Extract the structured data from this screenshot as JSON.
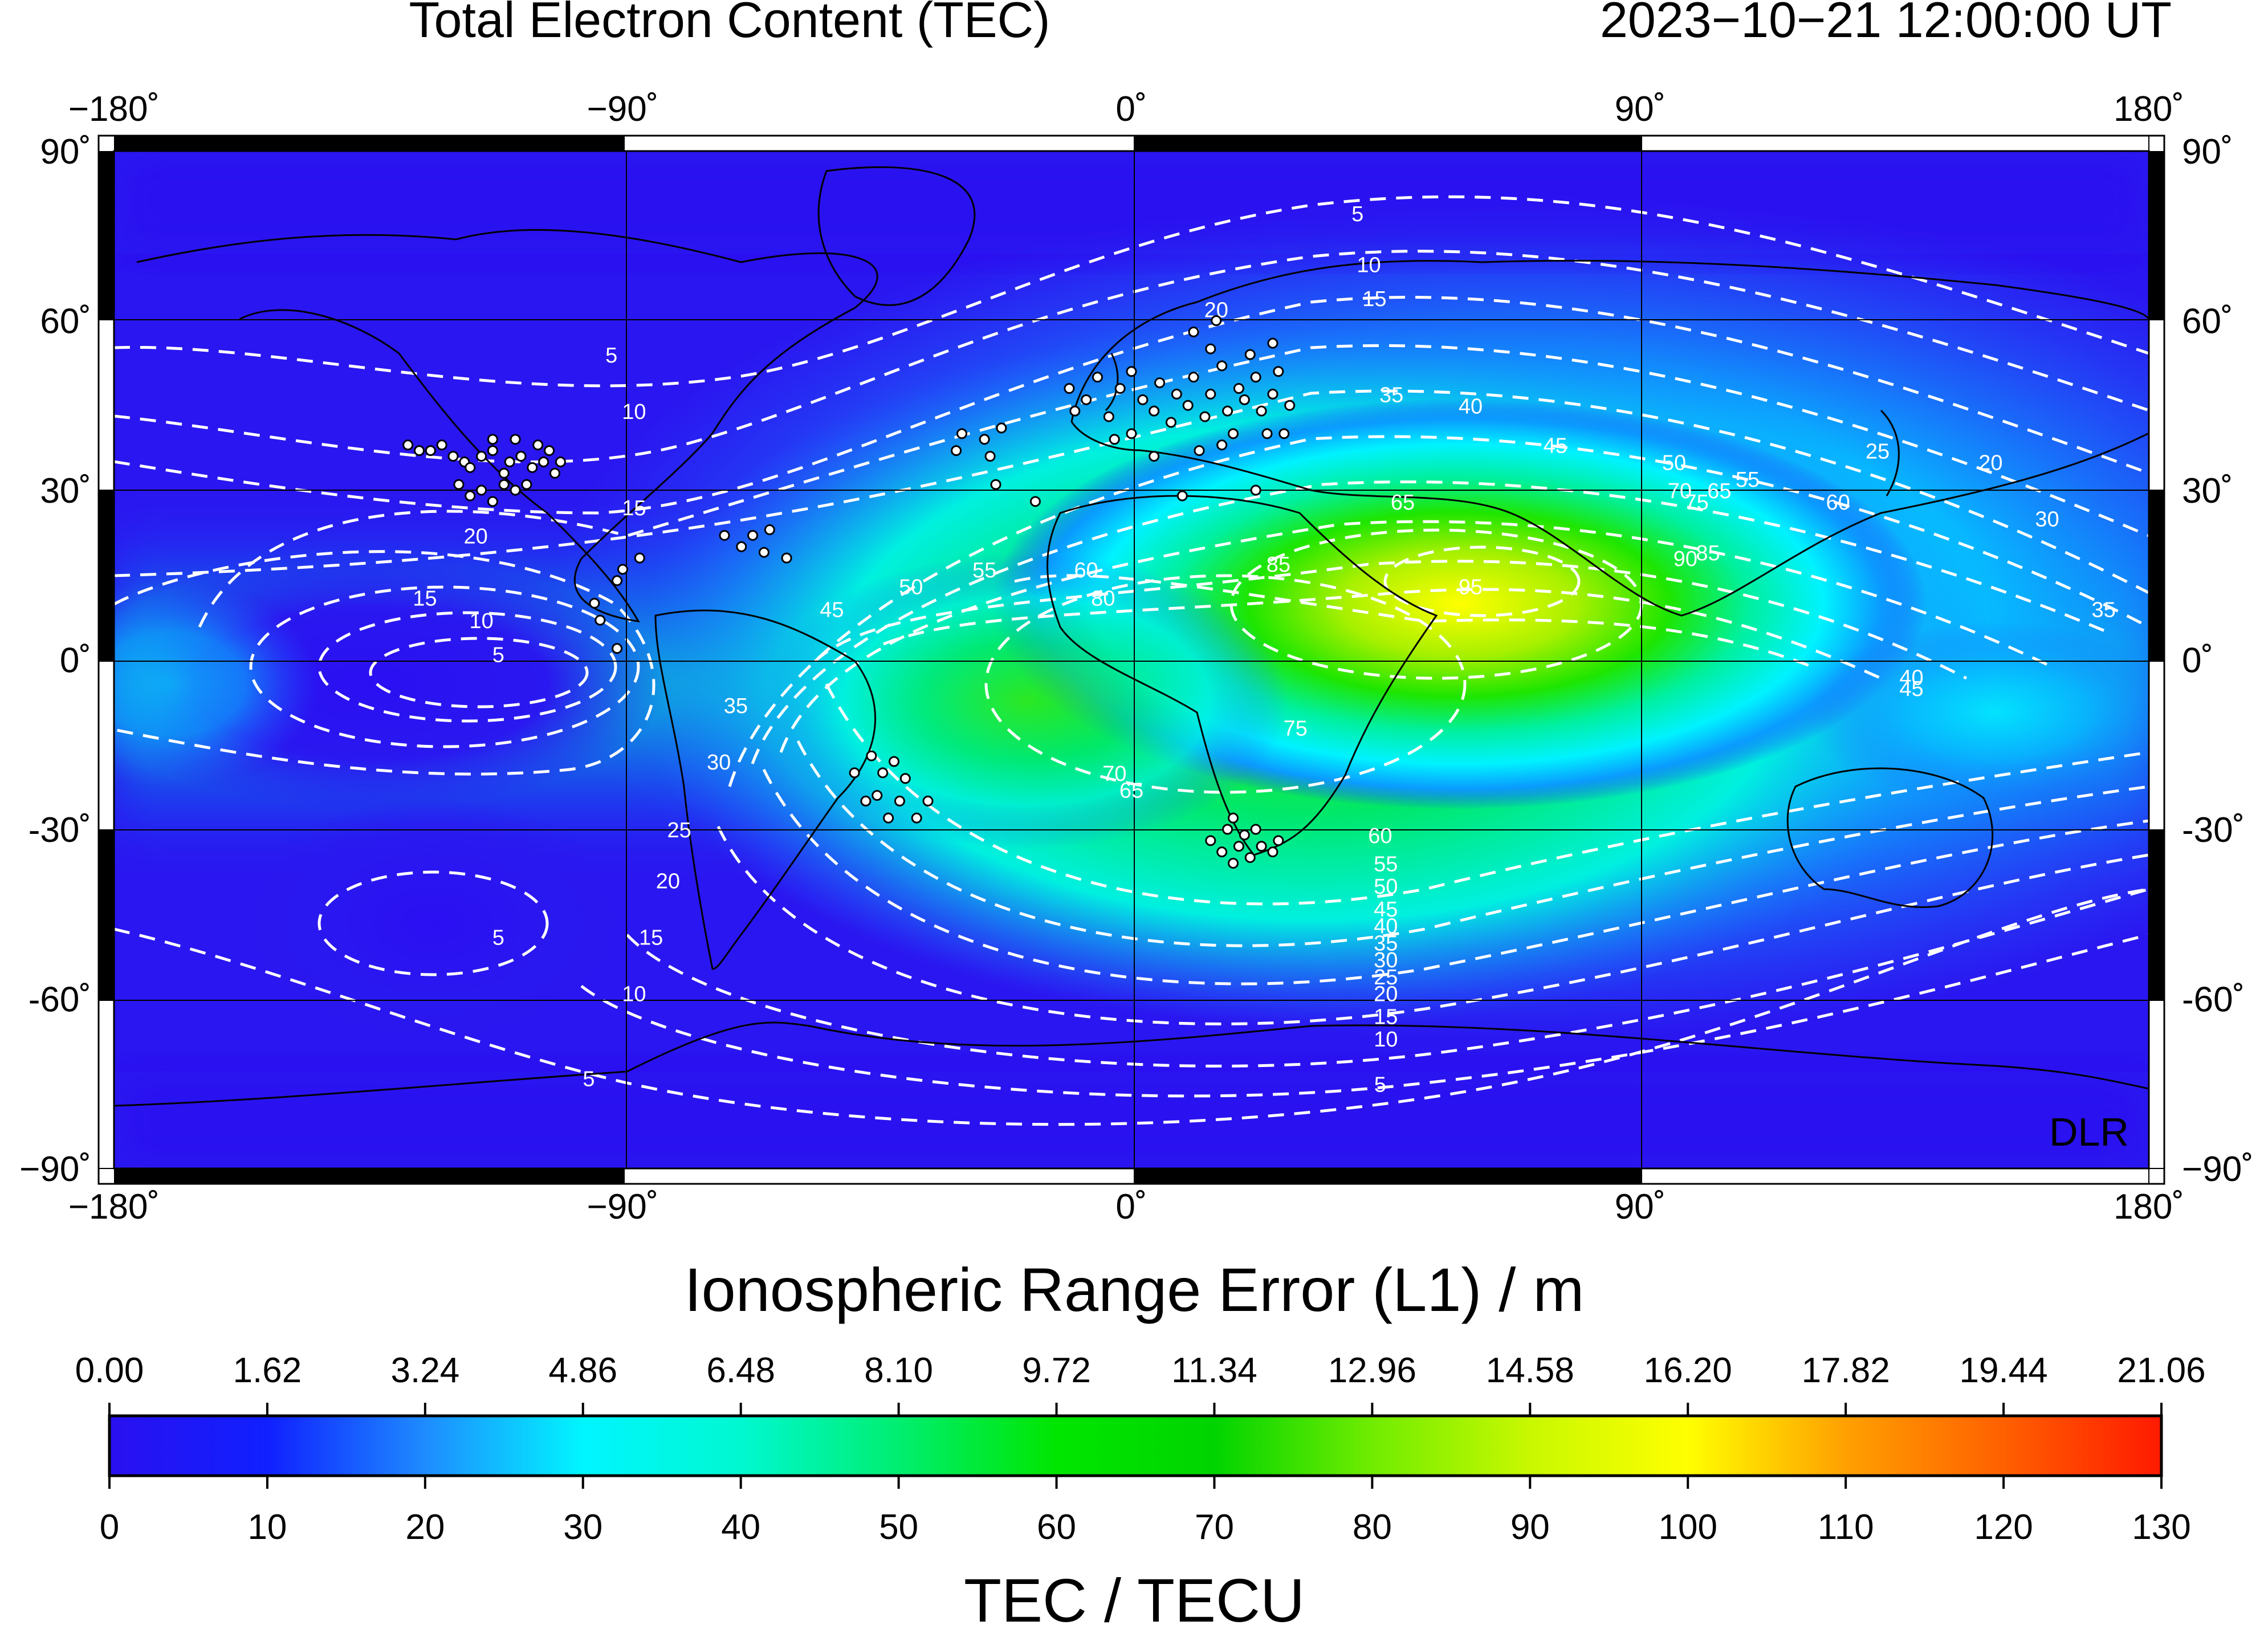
{
  "header": {
    "title": "Total Electron Content (TEC)",
    "timestamp": "2023−10−21  12:00:00 UT"
  },
  "map": {
    "lon_ticks": [
      {
        "value": -180,
        "label": "−180˚"
      },
      {
        "value": -90,
        "label": "−90˚"
      },
      {
        "value": 0,
        "label": "0˚"
      },
      {
        "value": 90,
        "label": "90˚"
      },
      {
        "value": 180,
        "label": "180˚"
      }
    ],
    "lat_ticks": [
      {
        "value": 90,
        "label": "90˚"
      },
      {
        "value": 60,
        "label": "60˚"
      },
      {
        "value": 30,
        "label": "30˚"
      },
      {
        "value": 0,
        "label": "0˚"
      },
      {
        "value": -30,
        "label": "-30˚"
      },
      {
        "value": -60,
        "label": "-60˚"
      },
      {
        "value": -90,
        "label": "−90˚"
      }
    ],
    "watermark": "DLR",
    "colors": {
      "low": "#2a10f0",
      "mid_blue": "#1e6cff",
      "cyan": "#00ffff",
      "green": "#00e600",
      "yellow": "#ffff00",
      "red": "#ff1a00",
      "contour": "#ffffff",
      "station_fill": "#ffffff"
    }
  },
  "chart_data": {
    "type": "heatmap",
    "title": "Total Electron Content (TEC)",
    "xlim": [
      -180,
      180
    ],
    "ylim": [
      -90,
      90
    ],
    "tec_maximum": {
      "lon": 58,
      "lat": 18,
      "value": 97
    },
    "contour_labels": [
      {
        "lon": 40,
        "lat": 79,
        "text": "5"
      },
      {
        "lon": 42,
        "lat": 70,
        "text": "10"
      },
      {
        "lon": 43,
        "lat": 64,
        "text": "15"
      },
      {
        "lon": 15,
        "lat": 62,
        "text": "20"
      },
      {
        "lon": 46,
        "lat": 47,
        "text": "35"
      },
      {
        "lon": 60,
        "lat": 45,
        "text": "40"
      },
      {
        "lon": 75,
        "lat": 38,
        "text": "45"
      },
      {
        "lon": 96,
        "lat": 35,
        "text": "50"
      },
      {
        "lon": 109,
        "lat": 32,
        "text": "55"
      },
      {
        "lon": 104,
        "lat": 30,
        "text": "65"
      },
      {
        "lon": 97,
        "lat": 30,
        "text": "70"
      },
      {
        "lon": 100,
        "lat": 28,
        "text": "75"
      },
      {
        "lon": 125,
        "lat": 28,
        "text": "60"
      },
      {
        "lon": 132,
        "lat": 37,
        "text": "25"
      },
      {
        "lon": 152,
        "lat": 35,
        "text": "20"
      },
      {
        "lon": 162,
        "lat": 25,
        "text": "30"
      },
      {
        "lon": 172,
        "lat": 9,
        "text": "35"
      },
      {
        "lon": 138,
        "lat": -3,
        "text": "40"
      },
      {
        "lon": 138,
        "lat": -5,
        "text": "45"
      },
      {
        "lon": 98,
        "lat": 18,
        "text": "90"
      },
      {
        "lon": 102,
        "lat": 19,
        "text": "85"
      },
      {
        "lon": 60,
        "lat": 13,
        "text": "95"
      },
      {
        "lon": 26,
        "lat": 17,
        "text": "85"
      },
      {
        "lon": 48,
        "lat": 28,
        "text": "65"
      },
      {
        "lon": -8,
        "lat": 16,
        "text": "60"
      },
      {
        "lon": -26,
        "lat": 16,
        "text": "55"
      },
      {
        "lon": -39,
        "lat": 13,
        "text": "50"
      },
      {
        "lon": -53,
        "lat": 9,
        "text": "45"
      },
      {
        "lon": -5,
        "lat": 11,
        "text": "80"
      },
      {
        "lon": 29,
        "lat": -12,
        "text": "75"
      },
      {
        "lon": -3,
        "lat": -20,
        "text": "70"
      },
      {
        "lon": 0,
        "lat": -23,
        "text": "65"
      },
      {
        "lon": -70,
        "lat": -8,
        "text": "35"
      },
      {
        "lon": -73,
        "lat": -18,
        "text": "30"
      },
      {
        "lon": -80,
        "lat": -30,
        "text": "25"
      },
      {
        "lon": -82,
        "lat": -39,
        "text": "20"
      },
      {
        "lon": -85,
        "lat": -49,
        "text": "15"
      },
      {
        "lon": -88,
        "lat": -59,
        "text": "10"
      },
      {
        "lon": -96,
        "lat": -74,
        "text": "5"
      },
      {
        "lon": -112,
        "lat": -49,
        "text": "5"
      },
      {
        "lon": -112,
        "lat": 1,
        "text": "5"
      },
      {
        "lon": -115,
        "lat": 7,
        "text": "10"
      },
      {
        "lon": -125,
        "lat": 11,
        "text": "15"
      },
      {
        "lon": -116,
        "lat": 22,
        "text": "20"
      },
      {
        "lon": -88,
        "lat": 27,
        "text": "15"
      },
      {
        "lon": -88,
        "lat": 44,
        "text": "10"
      },
      {
        "lon": -92,
        "lat": 54,
        "text": "5"
      },
      {
        "lon": 44,
        "lat": -31,
        "text": "60"
      },
      {
        "lon": 45,
        "lat": -36,
        "text": "55"
      },
      {
        "lon": 45,
        "lat": -40,
        "text": "50"
      },
      {
        "lon": 45,
        "lat": -44,
        "text": "45"
      },
      {
        "lon": 45,
        "lat": -47,
        "text": "40"
      },
      {
        "lon": 45,
        "lat": -50,
        "text": "35"
      },
      {
        "lon": 45,
        "lat": -53,
        "text": "30"
      },
      {
        "lon": 45,
        "lat": -56,
        "text": "25"
      },
      {
        "lon": 45,
        "lat": -59,
        "text": "20"
      },
      {
        "lon": 45,
        "lat": -63,
        "text": "15"
      },
      {
        "lon": 45,
        "lat": -67,
        "text": "10"
      },
      {
        "lon": 44,
        "lat": -75,
        "text": "5"
      }
    ],
    "contour_values": [
      5,
      10,
      15,
      20,
      25,
      30,
      35,
      40,
      45,
      50,
      55,
      60,
      65,
      70,
      75,
      80,
      85,
      90,
      95
    ],
    "stations": [
      [
        -128,
        38
      ],
      [
        -126,
        37
      ],
      [
        -124,
        37
      ],
      [
        -122,
        38
      ],
      [
        -120,
        36
      ],
      [
        -118,
        35
      ],
      [
        -117,
        34
      ],
      [
        -115,
        36
      ],
      [
        -113,
        37
      ],
      [
        -111,
        33
      ],
      [
        -110,
        35
      ],
      [
        -108,
        36
      ],
      [
        -106,
        34
      ],
      [
        -104,
        35
      ],
      [
        -102,
        33
      ],
      [
        -119,
        31
      ],
      [
        -117,
        29
      ],
      [
        -115,
        30
      ],
      [
        -113,
        28
      ],
      [
        -111,
        31
      ],
      [
        -109,
        30
      ],
      [
        -107,
        31
      ],
      [
        -113,
        39
      ],
      [
        -109,
        39
      ],
      [
        -105,
        38
      ],
      [
        -103,
        37
      ],
      [
        -101,
        35
      ],
      [
        -90,
        16
      ],
      [
        -87,
        18
      ],
      [
        -91,
        14
      ],
      [
        -95,
        10
      ],
      [
        -94,
        7
      ],
      [
        -91,
        2
      ],
      [
        -72,
        22
      ],
      [
        -69,
        20
      ],
      [
        -67,
        22
      ],
      [
        -65,
        19
      ],
      [
        -64,
        23
      ],
      [
        -61,
        18
      ],
      [
        -30,
        40
      ],
      [
        -26,
        39
      ],
      [
        -23,
        41
      ],
      [
        -31,
        37
      ],
      [
        -25,
        36
      ],
      [
        -24,
        31
      ],
      [
        -17,
        28
      ],
      [
        -11,
        48
      ],
      [
        -10,
        44
      ],
      [
        -8,
        46
      ],
      [
        -6,
        50
      ],
      [
        -4,
        43
      ],
      [
        -2,
        48
      ],
      [
        0,
        51
      ],
      [
        2,
        46
      ],
      [
        4,
        44
      ],
      [
        5,
        49
      ],
      [
        7,
        42
      ],
      [
        8,
        47
      ],
      [
        10,
        45
      ],
      [
        11,
        50
      ],
      [
        13,
        43
      ],
      [
        14,
        47
      ],
      [
        16,
        52
      ],
      [
        17,
        44
      ],
      [
        19,
        48
      ],
      [
        20,
        46
      ],
      [
        22,
        50
      ],
      [
        23,
        44
      ],
      [
        25,
        47
      ],
      [
        26,
        51
      ],
      [
        28,
        45
      ],
      [
        27,
        40
      ],
      [
        24,
        40
      ],
      [
        18,
        40
      ],
      [
        14,
        55
      ],
      [
        11,
        58
      ],
      [
        15,
        60
      ],
      [
        21,
        54
      ],
      [
        25,
        56
      ],
      [
        12,
        37
      ],
      [
        16,
        38
      ],
      [
        4,
        36
      ],
      [
        0,
        40
      ],
      [
        -3,
        39
      ],
      [
        22,
        30
      ],
      [
        9,
        29
      ],
      [
        -49,
        -20
      ],
      [
        -46,
        -17
      ],
      [
        -44,
        -20
      ],
      [
        -42,
        -18
      ],
      [
        -40,
        -21
      ],
      [
        -45,
        -24
      ],
      [
        -47,
        -25
      ],
      [
        -41,
        -25
      ],
      [
        -38,
        -28
      ],
      [
        -36,
        -25
      ],
      [
        -43,
        -28
      ],
      [
        14,
        -32
      ],
      [
        16,
        -34
      ],
      [
        17,
        -30
      ],
      [
        18,
        -36
      ],
      [
        19,
        -33
      ],
      [
        20,
        -31
      ],
      [
        21,
        -35
      ],
      [
        23,
        -33
      ],
      [
        25,
        -34
      ],
      [
        26,
        -32
      ],
      [
        22,
        -30
      ],
      [
        18,
        -28
      ]
    ],
    "colorbar": {
      "xlabel_top": "Ionospheric Range Error (L1) / m",
      "xlabel_bottom": "TEC / TECU",
      "range_error_ticks": [
        "0.00",
        "1.62",
        "3.24",
        "4.86",
        "6.48",
        "8.10",
        "9.72",
        "11.34",
        "12.96",
        "14.58",
        "16.20",
        "17.82",
        "19.44",
        "21.06"
      ],
      "tecu_ticks": [
        "0",
        "10",
        "20",
        "30",
        "40",
        "50",
        "60",
        "70",
        "80",
        "90",
        "100",
        "110",
        "120",
        "130"
      ],
      "range": [
        0,
        130
      ]
    }
  }
}
